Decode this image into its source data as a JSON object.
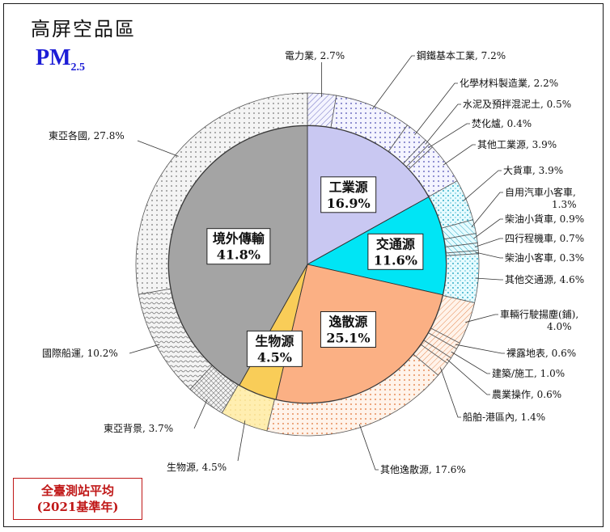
{
  "title": "高屏空品區",
  "pollutant_main": "PM",
  "pollutant_sub": "2.5",
  "footnote": {
    "line1": "全臺測站平均",
    "line2": "(2021基準年)"
  },
  "colors": {
    "industry": "#c9c8f2",
    "traffic": "#00e5f5",
    "fugitive": "#fbb084",
    "bio": "#f9cd58",
    "external": "#a4a4a4",
    "pm_blue": "#1c1cd6",
    "footnote_red": "#c01818"
  },
  "chart_data": {
    "type": "pie",
    "subtype": "nested-donut",
    "inner": [
      {
        "name": "工業源",
        "pct": "16.9%",
        "value": 16.9,
        "color": "#c9c8f2"
      },
      {
        "name": "交通源",
        "pct": "11.6%",
        "value": 11.6,
        "color": "#00e5f5"
      },
      {
        "name": "逸散源",
        "pct": "25.1%",
        "value": 25.1,
        "color": "#fbb084"
      },
      {
        "name": "生物源",
        "pct": "4.5%",
        "value": 4.5,
        "color": "#f9cd58"
      },
      {
        "name": "境外傳輸",
        "pct": "41.8%",
        "value": 41.8,
        "color": "#a4a4a4"
      }
    ],
    "outer": [
      {
        "label": "電力業, 2.7%",
        "value": 2.7,
        "group": 0
      },
      {
        "label": "鋼鐵基本工業, 7.2%",
        "value": 7.2,
        "group": 0
      },
      {
        "label": "化學材料製造業, 2.2%",
        "value": 2.2,
        "group": 0
      },
      {
        "label": "水泥及預拌混泥土, 0.5%",
        "value": 0.5,
        "group": 0
      },
      {
        "label": "焚化爐, 0.4%",
        "value": 0.4,
        "group": 0
      },
      {
        "label": "其他工業源, 3.9%",
        "value": 3.9,
        "group": 0
      },
      {
        "label": "大貨車, 3.9%",
        "value": 3.9,
        "group": 1
      },
      {
        "label": "自用汽車小客車, 1.3%",
        "value": 1.3,
        "group": 1
      },
      {
        "label": "柴油小貨車, 0.9%",
        "value": 0.9,
        "group": 1
      },
      {
        "label": "四行程機車, 0.7%",
        "value": 0.7,
        "group": 1
      },
      {
        "label": "柴油小客車, 0.3%",
        "value": 0.3,
        "group": 1
      },
      {
        "label": "其他交通源, 4.6%",
        "value": 4.6,
        "group": 1
      },
      {
        "label": "車輛行駛揚塵(鋪), 4.0%",
        "value": 4.0,
        "group": 2
      },
      {
        "label": "裸露地表, 0.6%",
        "value": 0.6,
        "group": 2
      },
      {
        "label": "建築/施工, 1.0%",
        "value": 1.0,
        "group": 2
      },
      {
        "label": "農業操作, 0.6%",
        "value": 0.6,
        "group": 2
      },
      {
        "label": "船舶-港區內, 1.4%",
        "value": 1.4,
        "group": 2
      },
      {
        "label": "其他逸散源, 17.6%",
        "value": 17.6,
        "group": 2
      },
      {
        "label": "生物源, 4.5%",
        "value": 4.5,
        "group": 3
      },
      {
        "label": "東亞背景, 3.7%",
        "value": 3.7,
        "group": 4
      },
      {
        "label": "國際船運, 10.2%",
        "value": 10.2,
        "group": 4
      },
      {
        "label": "東亞各國, 27.8%",
        "value": 27.8,
        "group": 4
      }
    ]
  }
}
